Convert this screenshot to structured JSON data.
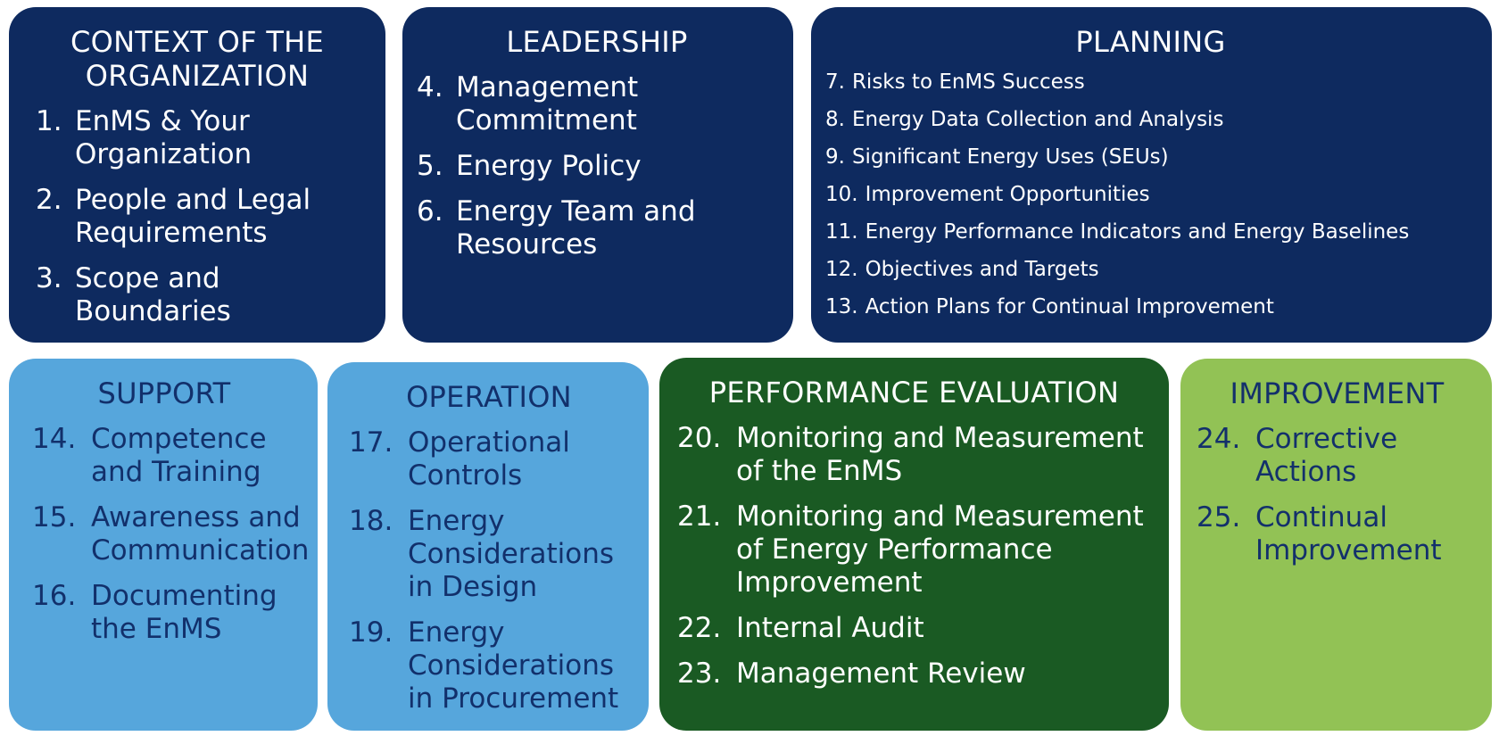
{
  "sections": [
    {
      "title": "CONTEXT OF THE ORGANIZATION",
      "items": [
        {
          "num": "1.",
          "text": "EnMS & Your Organization"
        },
        {
          "num": "2.",
          "text": "People and Legal Requirements"
        },
        {
          "num": "3.",
          "text": "Scope and Boundaries"
        }
      ]
    },
    {
      "title": "LEADERSHIP",
      "items": [
        {
          "num": "4.",
          "text": "Management Commitment"
        },
        {
          "num": "5.",
          "text": "Energy Policy"
        },
        {
          "num": "6.",
          "text": "Energy Team and Resources"
        }
      ]
    },
    {
      "title": "PLANNING",
      "items": [
        {
          "num": "7.",
          "text": "Risks to EnMS Success"
        },
        {
          "num": "8.",
          "text": "Energy Data Collection and Analysis"
        },
        {
          "num": "9.",
          "text": "Significant Energy Uses (SEUs)"
        },
        {
          "num": "10.",
          "text": "Improvement Opportunities"
        },
        {
          "num": "11.",
          "text": "Energy Performance Indicators and Energy Baselines"
        },
        {
          "num": "12.",
          "text": "Objectives and Targets"
        },
        {
          "num": "13.",
          "text": "Action Plans for Continual Improvement"
        }
      ]
    },
    {
      "title": "SUPPORT",
      "items": [
        {
          "num": "14.",
          "text": "Competence and Training"
        },
        {
          "num": "15.",
          "text": "Awareness and Communication"
        },
        {
          "num": "16.",
          "text": "Documenting the EnMS"
        }
      ]
    },
    {
      "title": "OPERATION",
      "items": [
        {
          "num": "17.",
          "text": "Operational Controls"
        },
        {
          "num": "18.",
          "text": "Energy Considerations in Design"
        },
        {
          "num": "19.",
          "text": "Energy Considerations in Procurement"
        }
      ]
    },
    {
      "title": "PERFORMANCE EVALUATION",
      "items": [
        {
          "num": "20.",
          "text": "Monitoring and Measurement of the EnMS"
        },
        {
          "num": "21.",
          "text": "Monitoring and Measurement of Energy Performance Improvement"
        },
        {
          "num": "22.",
          "text": "Internal Audit"
        },
        {
          "num": "23.",
          "text": "Management Review"
        }
      ]
    },
    {
      "title": "IMPROVEMENT",
      "items": [
        {
          "num": "24.",
          "text": "Corrective Actions"
        },
        {
          "num": "25.",
          "text": "Continual Improvement"
        }
      ]
    }
  ],
  "colors": {
    "dark_navy": "#0e2a5f",
    "light_blue": "#56a6dc",
    "dark_green": "#1a5a23",
    "lime_green": "#92c255"
  }
}
